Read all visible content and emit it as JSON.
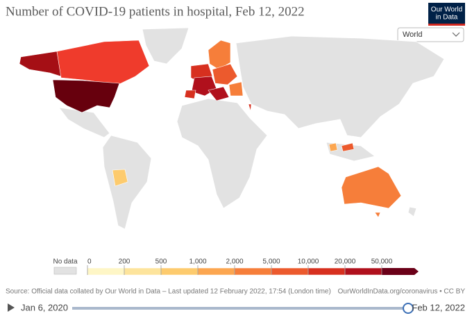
{
  "header": {
    "title": "Number of COVID-19 patients in hospital, Feb 12, 2022",
    "logo": [
      "Our World",
      "in Data"
    ],
    "selector": "World"
  },
  "legend": {
    "no_data_label": "No data",
    "ticks": [
      0,
      200,
      500,
      {
        "value": 1000,
        "label": "1,000"
      },
      {
        "value": 2000,
        "label": "2,000"
      },
      {
        "value": 5000,
        "label": "5,000"
      },
      {
        "value": 10000,
        "label": "10,000"
      },
      {
        "value": 20000,
        "label": "20,000"
      },
      {
        "value": 50000,
        "label": "50,000"
      }
    ],
    "colors": [
      "#fef6c6",
      "#fde49c",
      "#fdcb6e",
      "#fca650",
      "#f67e3a",
      "#ec5a2d",
      "#d7301f",
      "#b0101c",
      "#6b0018"
    ]
  },
  "footer": {
    "source": "Source: Official data collated by Our World in Data – Last updated 12 February 2022, 17:54 (London time)",
    "credit": "OurWorldInData.org/coronavirus • CC BY"
  },
  "timeline": {
    "start": "Jan 6, 2020",
    "end": "Feb 12, 2022"
  }
}
